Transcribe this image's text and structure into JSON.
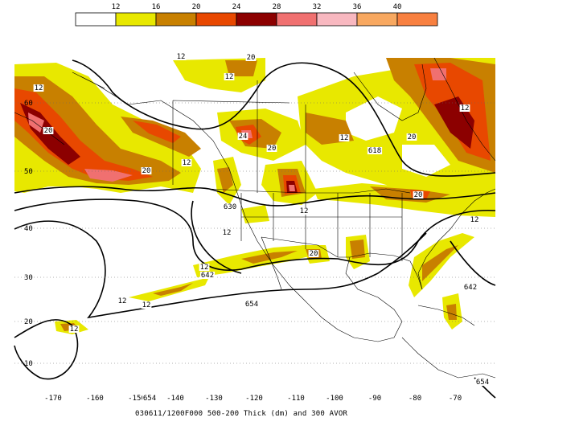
{
  "colorbar": {
    "labels": [
      "12",
      "16",
      "20",
      "24",
      "28",
      "32",
      "36",
      "40"
    ],
    "colors": [
      "#ffffff",
      "#e8e800",
      "#c88000",
      "#e84800",
      "#8c0000",
      "#f07070",
      "#f8b8c0",
      "#f8a860",
      "#f88040"
    ]
  },
  "map": {
    "lat_labels": [
      "60",
      "50",
      "40",
      "30",
      "20",
      "10"
    ],
    "lon_labels": [
      "-170",
      "-160",
      "-150",
      "-140",
      "-130",
      "-120",
      "-110",
      "-100",
      "-90",
      "-80",
      "-70"
    ],
    "contour_labels": [
      "12",
      "12",
      "12",
      "12",
      "12",
      "12",
      "12",
      "12",
      "12",
      "12",
      "12",
      "12",
      "12",
      "20",
      "20",
      "20",
      "20",
      "20",
      "20",
      "20",
      "24",
      "618",
      "630",
      "642",
      "642",
      "654",
      "654",
      "654"
    ]
  },
  "caption": "030611/1200F000 500-200 Thick (dm) and 300 AVOR"
}
